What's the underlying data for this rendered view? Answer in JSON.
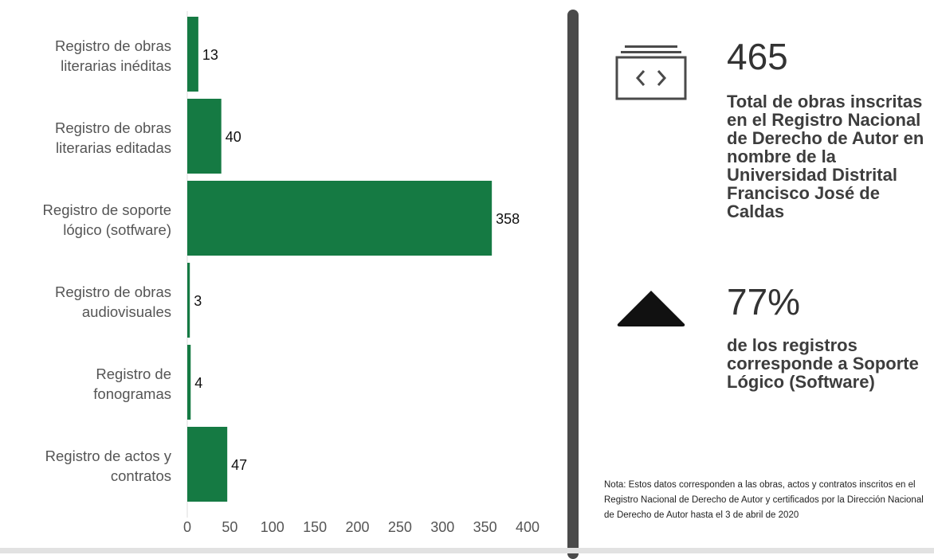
{
  "chart_data": {
    "type": "bar",
    "orientation": "horizontal",
    "categories": [
      [
        "Registro de obras",
        "literarias inéditas"
      ],
      [
        "Registro de obras",
        "literarias editadas"
      ],
      [
        "Registro de soporte",
        "lógico (sotfware)"
      ],
      [
        "Registro de obras",
        "audiovisuales"
      ],
      [
        "Registro de",
        "fonogramas"
      ],
      [
        "Registro de actos y",
        "contratos"
      ]
    ],
    "values": [
      13,
      40,
      358,
      3,
      4,
      47
    ],
    "xlim": [
      0,
      400
    ],
    "xticks": [
      0,
      50,
      100,
      150,
      200,
      250,
      300,
      350,
      400
    ],
    "bar_color": "#157a43",
    "grid": false,
    "title": "",
    "xlabel": "",
    "ylabel": ""
  },
  "stats": {
    "total": {
      "icon": "code-window-icon",
      "number": "465",
      "description": "Total de obras inscritas en el Registro Nacional de Derecho de Autor en nombre de la Universidad Distrital Francisco José de Caldas"
    },
    "share": {
      "icon": "triangle-up-icon",
      "number": "77%",
      "description": "de los registros corresponde a Soporte Lógico (Software)"
    }
  },
  "note": "Nota: Estos datos corresponden a las obras, actos y contratos inscritos en el Registro Nacional de Derecho de Autor y certificados por la Dirección Nacional de Derecho de Autor hasta el 3 de abril de 2020",
  "colors": {
    "bar": "#157a43",
    "divider": "#4a4a4a",
    "text": "#333333"
  }
}
